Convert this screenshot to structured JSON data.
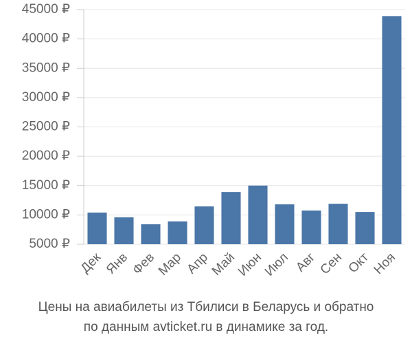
{
  "chart_data": {
    "type": "bar",
    "title": [
      "Цены на авиабилеты из Тбилиси в Беларусь и обратно",
      "по данным avticket.ru в динамике за год."
    ],
    "categories": [
      "Дек",
      "Янв",
      "Фев",
      "Мар",
      "Апр",
      "Май",
      "Июн",
      "Июл",
      "Авг",
      "Сен",
      "Окт",
      "Ноя"
    ],
    "values": [
      10400,
      9600,
      8400,
      8900,
      11450,
      13900,
      15000,
      11800,
      10750,
      11900,
      10500,
      43900
    ],
    "color": "#4a76a8",
    "ylim": [
      5000,
      45000
    ],
    "yticks": [
      {
        "value": 5000,
        "label": "5000 ₽"
      },
      {
        "value": 10000,
        "label": "10000 ₽"
      },
      {
        "value": 15000,
        "label": "15000 ₽"
      },
      {
        "value": 20000,
        "label": "20000 ₽"
      },
      {
        "value": 25000,
        "label": "25000 ₽"
      },
      {
        "value": 30000,
        "label": "30000 ₽"
      },
      {
        "value": 35000,
        "label": "35000 ₽"
      },
      {
        "value": 40000,
        "label": "40000 ₽"
      },
      {
        "value": 45000,
        "label": "45000 ₽"
      }
    ],
    "grid": true
  }
}
